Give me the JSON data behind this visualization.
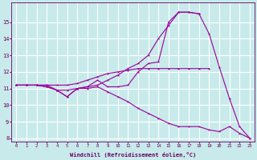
{
  "background_color": "#c8eaea",
  "grid_color": "#ffffff",
  "line_color": "#990099",
  "marker": "*",
  "xlabel": "Windchill (Refroidissement éolien,°C)",
  "xlabel_color": "#660066",
  "tick_color": "#660066",
  "xlim": [
    -0.5,
    23.5
  ],
  "ylim": [
    7.8,
    16.2
  ],
  "yticks": [
    8,
    9,
    10,
    11,
    12,
    13,
    14,
    15
  ],
  "xticks": [
    0,
    1,
    2,
    3,
    4,
    5,
    6,
    7,
    8,
    9,
    10,
    11,
    12,
    13,
    14,
    15,
    16,
    17,
    18,
    19,
    20,
    21,
    22,
    23
  ],
  "series": [
    {
      "x": [
        0,
        1,
        2,
        3,
        4,
        5,
        6,
        7,
        8,
        9,
        10,
        11,
        12,
        13,
        14,
        15,
        16,
        17,
        18,
        19,
        20,
        21,
        22,
        23
      ],
      "y": [
        11.2,
        11.2,
        11.2,
        11.2,
        10.9,
        10.5,
        11.0,
        11.0,
        11.1,
        10.8,
        10.5,
        10.2,
        9.8,
        9.5,
        9.2,
        8.9,
        8.7,
        8.7,
        8.7,
        8.5,
        8.4,
        8.7,
        8.3,
        8.0
      ]
    },
    {
      "x": [
        0,
        1,
        2,
        3,
        4,
        5,
        6,
        7,
        8,
        9,
        10,
        11,
        12,
        13,
        14,
        15,
        16,
        17,
        18,
        19,
        20,
        21,
        22,
        23
      ],
      "y": [
        11.2,
        11.2,
        11.2,
        11.1,
        10.9,
        10.5,
        11.0,
        11.1,
        11.5,
        11.1,
        11.1,
        11.2,
        12.0,
        12.5,
        12.6,
        15.0,
        15.6,
        15.6,
        15.5,
        14.3,
        12.3,
        10.4,
        8.7,
        8.0
      ]
    },
    {
      "x": [
        0,
        1,
        2,
        3,
        4,
        5,
        6,
        7,
        8,
        9,
        10,
        11,
        12,
        13,
        14,
        15,
        16,
        17,
        18
      ],
      "y": [
        11.2,
        11.2,
        11.2,
        11.1,
        10.9,
        10.9,
        11.0,
        11.1,
        11.2,
        11.5,
        11.8,
        12.2,
        12.5,
        13.0,
        14.0,
        14.8,
        15.6,
        15.6,
        15.5
      ]
    },
    {
      "x": [
        0,
        1,
        2,
        3,
        4,
        5,
        6,
        7,
        8,
        9,
        10,
        11,
        12,
        13,
        14,
        15,
        16,
        17,
        18,
        19
      ],
      "y": [
        11.2,
        11.2,
        11.2,
        11.2,
        11.2,
        11.2,
        11.3,
        11.5,
        11.7,
        11.9,
        12.0,
        12.1,
        12.2,
        12.2,
        12.2,
        12.2,
        12.2,
        12.2,
        12.2,
        12.2
      ]
    }
  ]
}
